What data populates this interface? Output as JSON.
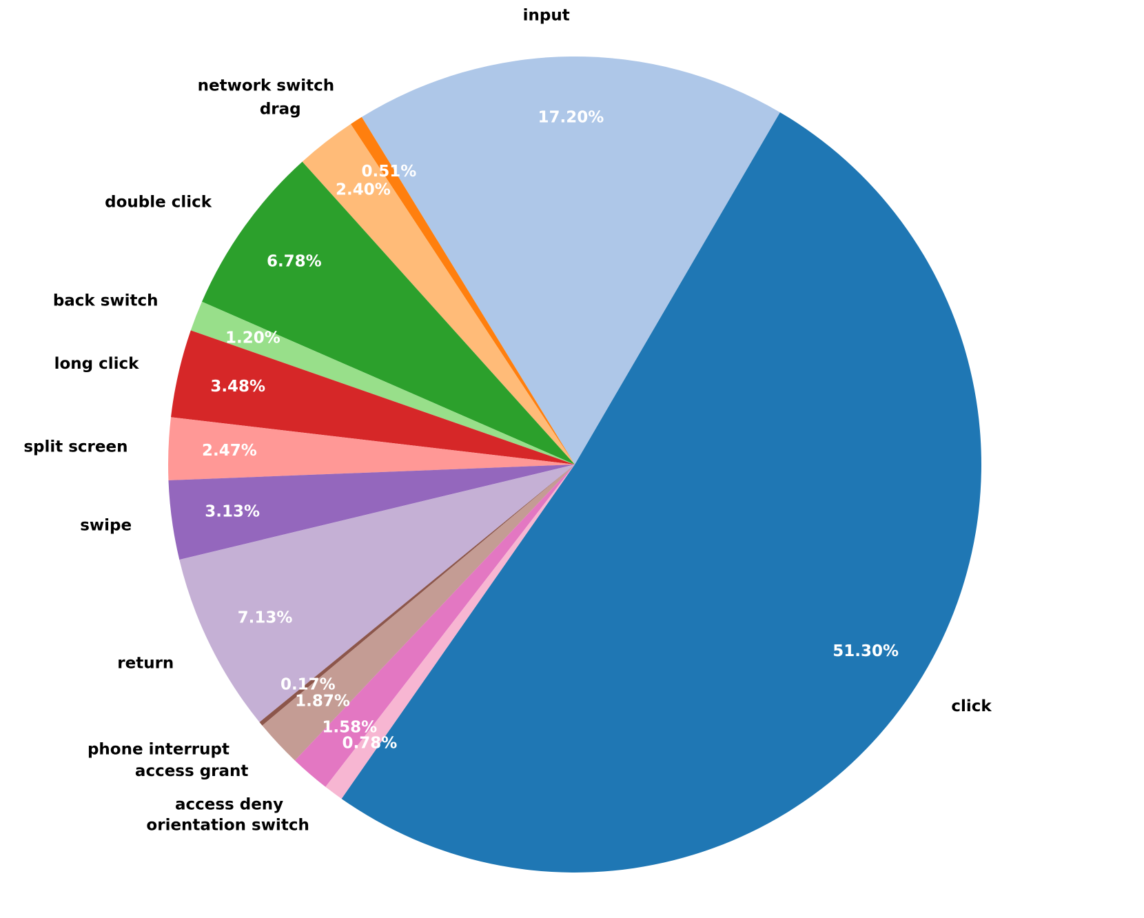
{
  "chart_data": {
    "type": "pie",
    "categories": [
      "click",
      "input",
      "network switch",
      "drag",
      "double click",
      "back switch",
      "long click",
      "split screen",
      "swipe",
      "return",
      "phone interrupt",
      "access grant",
      "access deny",
      "orientation switch"
    ],
    "values": [
      51.3,
      17.2,
      0.51,
      2.4,
      6.78,
      1.2,
      3.48,
      2.47,
      3.13,
      7.13,
      0.17,
      1.87,
      1.58,
      0.78
    ],
    "percent_labels": [
      "51.30%",
      "17.20%",
      "0.51%",
      "2.40%",
      "6.78%",
      "1.20%",
      "3.48%",
      "2.47%",
      "3.13%",
      "7.13%",
      "0.17%",
      "1.87%",
      "1.58%",
      "0.78%"
    ],
    "colors": [
      "#1f77b4",
      "#aec7e8",
      "#ff7f0e",
      "#ffbb78",
      "#2ca02c",
      "#98df8a",
      "#d62728",
      "#ff9896",
      "#9467bd",
      "#c5b0d5",
      "#8c564b",
      "#c49c94",
      "#e377c2",
      "#f7b6d2"
    ],
    "title": "",
    "legend": "none"
  }
}
